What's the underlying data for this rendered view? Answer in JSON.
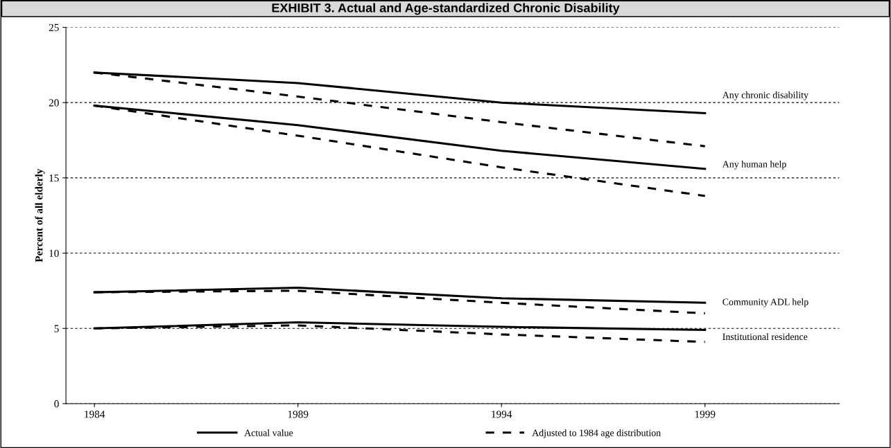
{
  "chart_data": {
    "type": "line",
    "title": "EXHIBIT 3. Actual and Age-standardized Chronic Disability",
    "ylabel": "Percent of all elderly",
    "x": [
      1984,
      1989,
      1994,
      1999
    ],
    "series": [
      {
        "name": "Actual value",
        "color": "#000000",
        "line_style": "solid",
        "values": [
          22.0,
          21.3,
          20.0,
          19.3
        ]
      },
      {
        "name": "Adjusted to 1984 age distribution",
        "color": "#000000",
        "line_style": "dashed",
        "values": [
          22.0,
          20.4,
          18.7,
          17.1
        ]
      },
      {
        "color": "#000000",
        "line_style": "solid",
        "values": [
          19.8,
          18.5,
          16.8,
          15.6
        ]
      },
      {
        "color": "#000000",
        "line_style": "dashed",
        "values": [
          19.8,
          17.8,
          15.7,
          13.8
        ]
      },
      {
        "color": "#000000",
        "line_style": "solid",
        "values": [
          7.4,
          7.7,
          7.0,
          6.7
        ]
      },
      {
        "color": "#000000",
        "line_style": "dashed",
        "values": [
          7.4,
          7.5,
          6.7,
          6.0
        ]
      },
      {
        "color": "#000000",
        "line_style": "solid",
        "values": [
          5.0,
          5.4,
          5.1,
          4.9
        ]
      },
      {
        "color": "#000000",
        "line_style": "dashed",
        "values": [
          5.0,
          5.2,
          4.6,
          4.1
        ]
      }
    ],
    "annotations": [
      "Any chronic disability",
      "Any human help",
      "Community ADL help",
      "Institutional residence"
    ],
    "xlim": [
      1983.3,
      2002.3
    ],
    "xticks": [
      1984,
      1989,
      1994,
      1999
    ],
    "ylim": [
      0,
      25
    ],
    "yticks": [
      0,
      5,
      10,
      15,
      20,
      25
    ],
    "grid": "y",
    "legend": "bottom",
    "marker": "none"
  }
}
